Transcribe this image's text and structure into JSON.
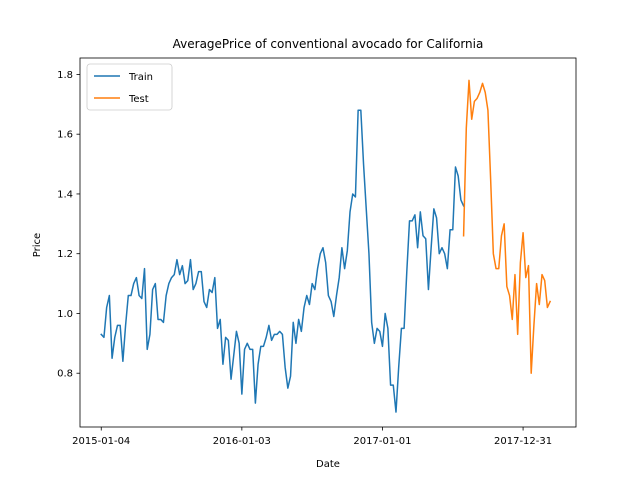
{
  "chart_data": {
    "type": "line",
    "title": "AveragePrice of conventional avocado for California",
    "xlabel": "Date",
    "ylabel": "Price",
    "x_range": [
      "2014-11-10",
      "2018-05-17"
    ],
    "ylim": [
      0.62,
      1.855
    ],
    "x_ticks": [
      {
        "date": "2015-01-04",
        "label": "2015-01-04"
      },
      {
        "date": "2016-01-03",
        "label": "2016-01-03"
      },
      {
        "date": "2017-01-01",
        "label": "2017-01-01"
      },
      {
        "date": "2017-12-31",
        "label": "2017-12-31"
      }
    ],
    "y_ticks": [
      {
        "value": 0.8,
        "label": "0.8"
      },
      {
        "value": 1.0,
        "label": "1.0"
      },
      {
        "value": 1.2,
        "label": "1.2"
      },
      {
        "value": 1.4,
        "label": "1.4"
      },
      {
        "value": 1.6,
        "label": "1.6"
      },
      {
        "value": 1.8,
        "label": "1.8"
      }
    ],
    "grid": false,
    "legend": {
      "position": "upper-left"
    },
    "series": [
      {
        "name": "Train",
        "color": "#1f77b4",
        "start_date": "2015-01-04",
        "interval_days": 7,
        "values": [
          0.93,
          0.92,
          1.02,
          1.06,
          0.85,
          0.92,
          0.96,
          0.96,
          0.84,
          0.96,
          1.06,
          1.06,
          1.1,
          1.12,
          1.06,
          1.05,
          1.15,
          0.88,
          0.93,
          1.08,
          1.1,
          0.98,
          0.98,
          0.97,
          1.06,
          1.1,
          1.12,
          1.13,
          1.18,
          1.13,
          1.16,
          1.1,
          1.11,
          1.18,
          1.08,
          1.1,
          1.14,
          1.14,
          1.04,
          1.02,
          1.08,
          1.07,
          1.12,
          0.95,
          0.98,
          0.83,
          0.92,
          0.91,
          0.78,
          0.86,
          0.94,
          0.9,
          0.73,
          0.88,
          0.9,
          0.88,
          0.88,
          0.7,
          0.83,
          0.89,
          0.89,
          0.92,
          0.96,
          0.91,
          0.93,
          0.93,
          0.94,
          0.93,
          0.82,
          0.75,
          0.79,
          0.97,
          0.9,
          0.98,
          0.94,
          1.02,
          1.06,
          1.03,
          1.1,
          1.08,
          1.15,
          1.2,
          1.22,
          1.17,
          1.06,
          1.04,
          0.99,
          1.06,
          1.12,
          1.22,
          1.15,
          1.21,
          1.34,
          1.4,
          1.39,
          1.68,
          1.68,
          1.5,
          1.35,
          1.2,
          0.97,
          0.9,
          0.95,
          0.94,
          0.89,
          1.0,
          0.95,
          0.76,
          0.76,
          0.67,
          0.82,
          0.95,
          0.95,
          1.14,
          1.31,
          1.31,
          1.33,
          1.22,
          1.34,
          1.26,
          1.25,
          1.08,
          1.22,
          1.35,
          1.32,
          1.2,
          1.22,
          1.2,
          1.15,
          1.28,
          1.28,
          1.49,
          1.46,
          1.38,
          1.36
        ]
      },
      {
        "name": "Test",
        "color": "#ff7f0e",
        "start_date": "2017-07-30",
        "interval_days": 7,
        "values": [
          1.26,
          1.62,
          1.78,
          1.65,
          1.71,
          1.72,
          1.74,
          1.77,
          1.74,
          1.68,
          1.45,
          1.2,
          1.15,
          1.15,
          1.26,
          1.3,
          1.09,
          1.06,
          0.98,
          1.13,
          0.93,
          1.17,
          1.27,
          1.12,
          1.16,
          0.8,
          0.96,
          1.1,
          1.03,
          1.13,
          1.11,
          1.02,
          1.04
        ]
      }
    ]
  }
}
